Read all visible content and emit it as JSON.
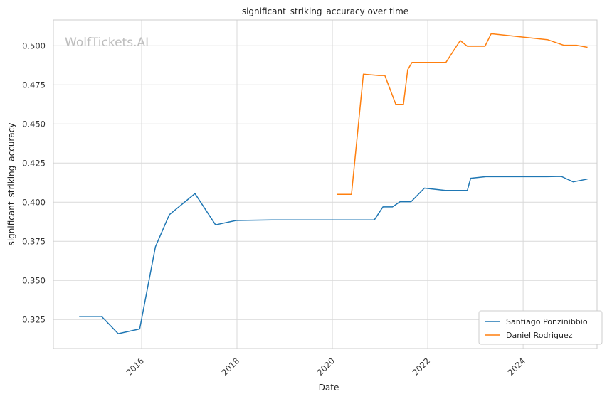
{
  "chart_data": {
    "type": "line",
    "title": "significant_striking_accuracy over time",
    "xlabel": "Date",
    "ylabel": "significant_striking_accuracy",
    "watermark": "WolfTickets.AI",
    "xlim": [
      2014.15,
      2025.55
    ],
    "ylim": [
      0.3065,
      0.5165
    ],
    "x_ticks": [
      2016,
      2018,
      2020,
      2022,
      2024
    ],
    "x_tick_labels": [
      "2016",
      "2018",
      "2020",
      "2022",
      "2024"
    ],
    "y_ticks": [
      0.325,
      0.35,
      0.375,
      0.4,
      0.425,
      0.45,
      0.475,
      0.5
    ],
    "y_tick_labels": [
      "0.325",
      "0.350",
      "0.375",
      "0.400",
      "0.425",
      "0.450",
      "0.475",
      "0.500"
    ],
    "grid": true,
    "legend_position": "lower-right",
    "series": [
      {
        "name": "Santiago Ponzinibbio",
        "color": "#1f77b4",
        "x": [
          2014.69,
          2015.16,
          2015.51,
          2015.96,
          2016.29,
          2016.58,
          2017.12,
          2017.55,
          2017.98,
          2018.8,
          2019.9,
          2020.88,
          2021.06,
          2021.26,
          2021.42,
          2021.65,
          2021.93,
          2022.37,
          2022.83,
          2022.9,
          2023.22,
          2024.5,
          2024.8,
          2025.05,
          2025.35
        ],
        "y": [
          0.327,
          0.327,
          0.316,
          0.319,
          0.3715,
          0.392,
          0.4055,
          0.3855,
          0.3883,
          0.3887,
          0.3887,
          0.3887,
          0.397,
          0.397,
          0.4003,
          0.4003,
          0.409,
          0.4075,
          0.4075,
          0.4153,
          0.4163,
          0.4163,
          0.4165,
          0.413,
          0.4148
        ]
      },
      {
        "name": "Daniel Rodriguez",
        "color": "#ff7f0e",
        "x": [
          2020.1,
          2020.4,
          2020.65,
          2020.97,
          2021.1,
          2021.33,
          2021.49,
          2021.58,
          2021.67,
          2022.38,
          2022.68,
          2022.83,
          2023.2,
          2023.33,
          2024.52,
          2024.85,
          2025.12,
          2025.35
        ],
        "y": [
          0.405,
          0.405,
          0.4818,
          0.481,
          0.481,
          0.4625,
          0.4625,
          0.4847,
          0.4893,
          0.4893,
          0.5033,
          0.4997,
          0.4997,
          0.5077,
          0.5038,
          0.5003,
          0.5003,
          0.499
        ]
      }
    ]
  }
}
